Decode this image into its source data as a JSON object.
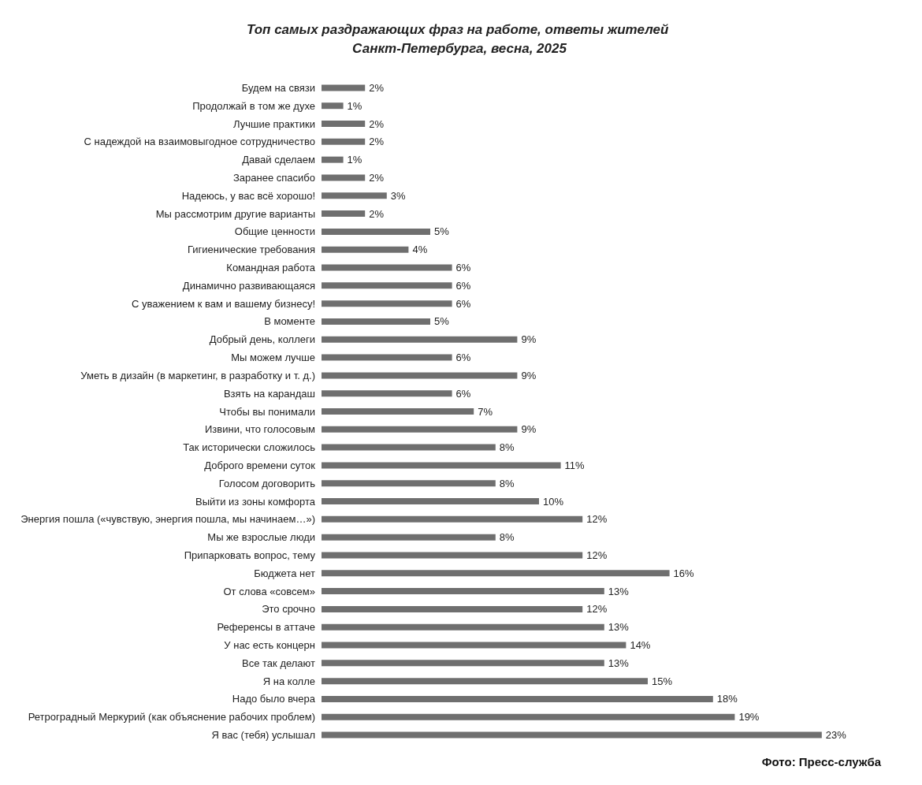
{
  "chart_data": {
    "type": "bar",
    "orientation": "horizontal",
    "title": "Топ самых раздражающих фраз на работе, ответы жителей Санкт-Петербурга, весна, 2025",
    "categories": [
      "Будем на связи",
      "Продолжай в том же духе",
      "Лучшие практики",
      "С надеждой на взаимовыгодное сотрудничество",
      "Давай сделаем",
      "Заранее спасибо",
      "Надеюсь, у вас всё хорошо!",
      "Мы рассмотрим другие варианты",
      "Общие ценности",
      "Гигиенические требования",
      "Командная работа",
      "Динамично развивающаяся",
      "С уважением к вам и вашему бизнесу!",
      "В моменте",
      "Добрый день, коллеги",
      "Мы можем лучше",
      "Уметь в дизайн (в маркетинг, в разработку и т. д.)",
      "Взять на карандаш",
      "Чтобы вы понимали",
      "Извини, что голосовым",
      "Так исторически сложилось",
      "Доброго времени суток",
      "Голосом договорить",
      "Выйти из зоны комфорта",
      "Энергия пошла («чувствую, энергия пошла, мы начинаем…»)",
      "Мы же взрослые люди",
      "Припарковать вопрос, тему",
      "Бюджета нет",
      "От слова «совсем»",
      "Это срочно",
      "Референсы в аттаче",
      "У нас есть концерн",
      "Все так делают",
      "Я на колле",
      "Надо было вчера",
      "Ретроградный Меркурий (как объяснение рабочих проблем)",
      "Я вас (тебя) услышал"
    ],
    "values": [
      2,
      1,
      2,
      2,
      1,
      2,
      3,
      2,
      5,
      4,
      6,
      6,
      6,
      5,
      9,
      6,
      9,
      6,
      7,
      9,
      8,
      11,
      8,
      10,
      12,
      8,
      12,
      16,
      13,
      12,
      13,
      14,
      13,
      15,
      18,
      19,
      23
    ],
    "value_labels": [
      "2%",
      "1%",
      "2%",
      "2%",
      "1%",
      "2%",
      "3%",
      "2%",
      "5%",
      "4%",
      "6%",
      "6%",
      "6%",
      "5%",
      "9%",
      "6%",
      "9%",
      "6%",
      "7%",
      "9%",
      "8%",
      "11%",
      "8%",
      "10%",
      "12%",
      "8%",
      "12%",
      "16%",
      "13%",
      "12%",
      "13%",
      "14%",
      "13%",
      "15%",
      "18%",
      "19%",
      "23%"
    ],
    "color": "#6f6f6f",
    "annotations": [
      "Фото: Пресс-служба"
    ]
  }
}
